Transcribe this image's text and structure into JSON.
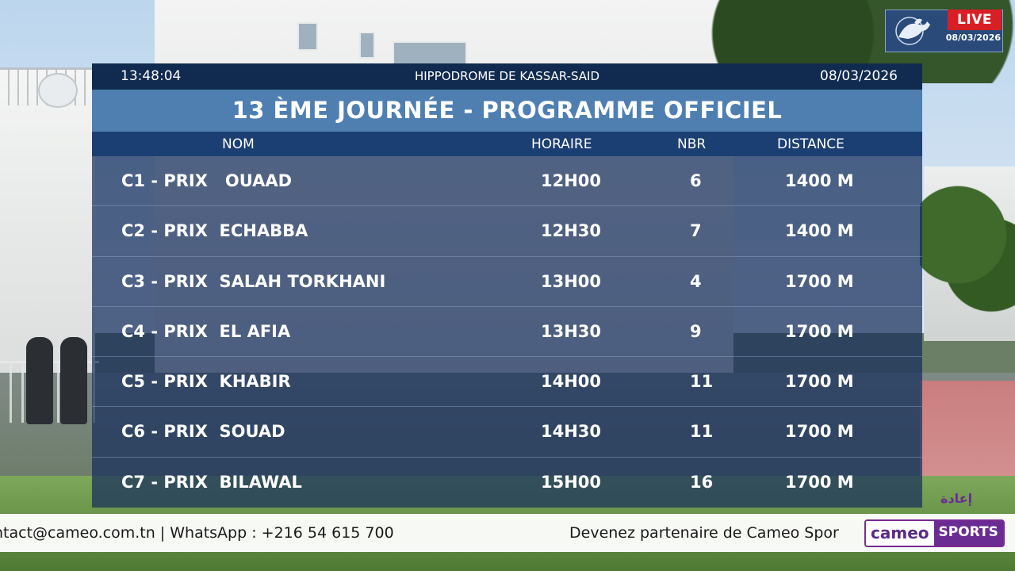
{
  "live_badge": {
    "label": "LIVE",
    "date": "08/03/2026"
  },
  "header": {
    "time": "13:48:04",
    "venue": "HIPPODROME DE KASSAR-SAID",
    "date": "08/03/2026",
    "title": "13 ÈME JOURNÉE - PROGRAMME  OFFICIEL"
  },
  "columns": {
    "nom": "NOM",
    "horaire": "HORAIRE",
    "nbr": "NBR",
    "distance": "DISTANCE"
  },
  "races": [
    {
      "name": "C1 - PRIX   OUAAD",
      "time": "12H00",
      "nbr": "6",
      "distance": "1400 M"
    },
    {
      "name": "C2 - PRIX  ECHABBA",
      "time": "12H30",
      "nbr": "7",
      "distance": "1400 M"
    },
    {
      "name": "C3 - PRIX  SALAH TORKHANI",
      "time": "13H00",
      "nbr": "4",
      "distance": "1700 M"
    },
    {
      "name": "C4 - PRIX  EL AFIA",
      "time": "13H30",
      "nbr": "9",
      "distance": "1700 M"
    },
    {
      "name": "C5 - PRIX  KHABIR",
      "time": "14H00",
      "nbr": "11",
      "distance": "1700 M"
    },
    {
      "name": "C6 - PRIX  SOUAD",
      "time": "14H30",
      "nbr": "11",
      "distance": "1700 M"
    },
    {
      "name": "C7 - PRIX  BILAWAL",
      "time": "15H00",
      "nbr": "16",
      "distance": "1700 M"
    }
  ],
  "ticker": {
    "contact": "ntact@cameo.com.tn | WhatsApp : +216 54 615 700",
    "partner": "Devenez partenaire de Cameo Spor"
  },
  "brand": {
    "part1": "cameo",
    "part2": "SPORTS"
  },
  "replay_label": "إعادة",
  "colors": {
    "topbar": "#102b4f",
    "titlebar": "#4f7fb1",
    "headbar": "#1c3f73",
    "live_red": "#d81f25",
    "brand_purple": "#6a2c93"
  }
}
